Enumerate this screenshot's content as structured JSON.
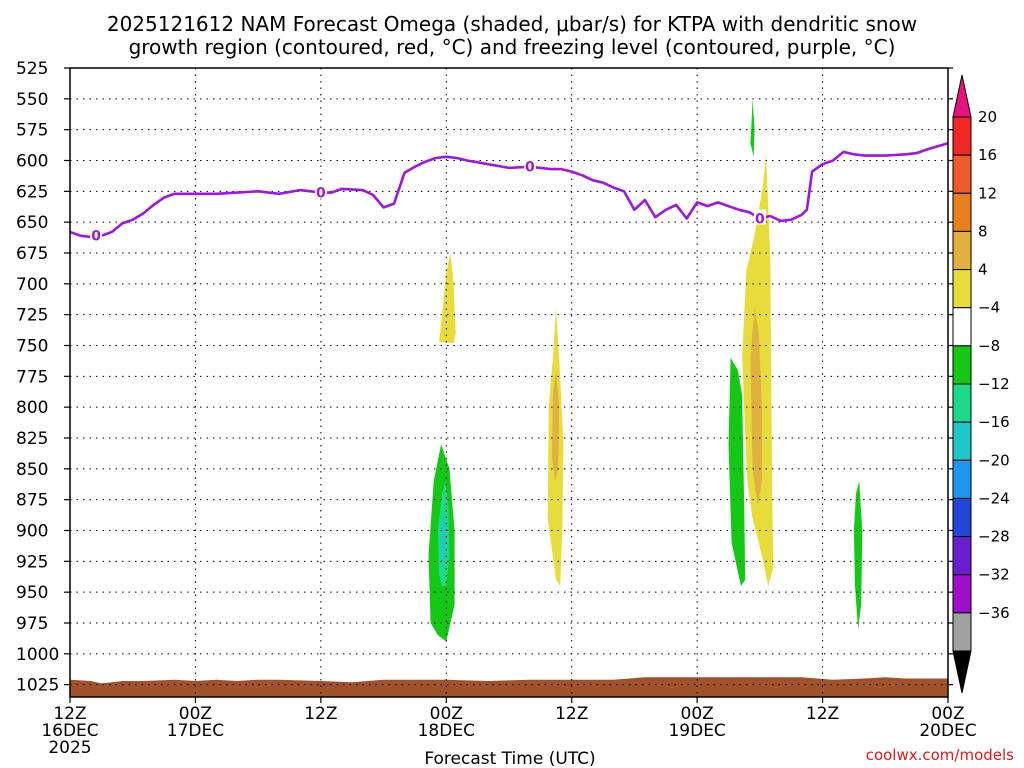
{
  "header": {
    "title_line1": "2025121612 NAM Forecast Omega (shaded, μbar/s) for KTPA with dendritic snow",
    "title_line2": "growth region (contoured, red, °C) and freezing level (contoured, purple, °C)"
  },
  "footer": {
    "xlabel": "Forecast Time (UTC)",
    "credit": "coolwx.com/models"
  },
  "colors": {
    "freezing_line": "#9b1bd4",
    "terrain": "#a0522d",
    "grid": "#000000"
  },
  "chart_data": {
    "type": "contour",
    "x_unit": "forecast hour from 2025-12-16 12Z",
    "xlim": [
      0,
      84
    ],
    "y_unit": "hPa",
    "ylim": [
      1035,
      525
    ],
    "y_ticks": [
      525,
      550,
      575,
      600,
      625,
      650,
      675,
      700,
      725,
      750,
      775,
      800,
      825,
      850,
      875,
      900,
      925,
      950,
      975,
      1000,
      1025
    ],
    "x_ticks": [
      {
        "hour": 0,
        "line1": "12Z",
        "line2": "16DEC",
        "line3": "2025"
      },
      {
        "hour": 12,
        "line1": "00Z",
        "line2": "17DEC",
        "line3": ""
      },
      {
        "hour": 24,
        "line1": "12Z",
        "line2": "",
        "line3": ""
      },
      {
        "hour": 36,
        "line1": "00Z",
        "line2": "18DEC",
        "line3": ""
      },
      {
        "hour": 48,
        "line1": "12Z",
        "line2": "",
        "line3": ""
      },
      {
        "hour": 60,
        "line1": "00Z",
        "line2": "19DEC",
        "line3": ""
      },
      {
        "hour": 72,
        "line1": "12Z",
        "line2": "",
        "line3": ""
      },
      {
        "hour": 84,
        "line1": "00Z",
        "line2": "20DEC",
        "line3": ""
      }
    ],
    "colorbar": {
      "labels": [
        "20",
        "16",
        "12",
        "8",
        "4",
        "−4",
        "−8",
        "−12",
        "−16",
        "−20",
        "−24",
        "−28",
        "−32",
        "−36"
      ],
      "top_arrow_color": "#e8127a",
      "bottom_arrow_color": "#000000",
      "bins": [
        {
          "color": "#f02828"
        },
        {
          "color": "#f05a28"
        },
        {
          "color": "#e8801e"
        },
        {
          "color": "#e0b040"
        },
        {
          "color": "#e8dc3c"
        },
        {
          "color": "#ffffff"
        },
        {
          "color": "#16c816"
        },
        {
          "color": "#1ed88c"
        },
        {
          "color": "#1ec8c8"
        },
        {
          "color": "#1e96ee"
        },
        {
          "color": "#2246d8"
        },
        {
          "color": "#6a1ed0"
        },
        {
          "color": "#9b10c8"
        },
        {
          "color": "#a0a0a0"
        }
      ]
    },
    "freezing_level": {
      "label": "0",
      "label_points": [
        [
          2.5,
          661
        ],
        [
          24,
          626
        ],
        [
          44,
          605
        ],
        [
          66,
          647
        ]
      ],
      "points": [
        [
          0,
          658
        ],
        [
          1,
          661
        ],
        [
          2,
          662
        ],
        [
          3,
          661
        ],
        [
          4,
          658
        ],
        [
          5,
          651
        ],
        [
          6,
          648
        ],
        [
          7,
          643
        ],
        [
          8,
          636
        ],
        [
          9,
          630
        ],
        [
          10,
          627
        ],
        [
          12,
          627
        ],
        [
          14,
          627
        ],
        [
          16,
          626
        ],
        [
          18,
          625
        ],
        [
          20,
          627
        ],
        [
          22,
          624
        ],
        [
          24,
          626
        ],
        [
          25,
          626
        ],
        [
          26,
          623
        ],
        [
          28,
          624
        ],
        [
          29,
          628
        ],
        [
          30,
          638
        ],
        [
          31,
          635
        ],
        [
          32,
          610
        ],
        [
          33,
          605
        ],
        [
          34,
          601
        ],
        [
          35,
          598
        ],
        [
          36,
          597
        ],
        [
          37,
          598
        ],
        [
          38,
          600
        ],
        [
          40,
          603
        ],
        [
          42,
          606
        ],
        [
          44,
          605
        ],
        [
          45,
          606
        ],
        [
          46,
          607
        ],
        [
          47,
          607
        ],
        [
          48,
          609
        ],
        [
          49,
          612
        ],
        [
          50,
          616
        ],
        [
          51,
          618
        ],
        [
          52,
          622
        ],
        [
          53,
          625
        ],
        [
          54,
          640
        ],
        [
          55,
          632
        ],
        [
          56,
          646
        ],
        [
          57,
          640
        ],
        [
          58,
          636
        ],
        [
          59,
          647
        ],
        [
          60,
          634
        ],
        [
          61,
          637
        ],
        [
          62,
          634
        ],
        [
          63,
          637
        ],
        [
          64,
          640
        ],
        [
          65,
          642
        ],
        [
          66,
          647
        ],
        [
          67,
          645
        ],
        [
          68,
          649
        ],
        [
          69,
          648
        ],
        [
          70,
          644
        ],
        [
          70.5,
          640
        ],
        [
          71,
          609
        ],
        [
          72,
          603
        ],
        [
          73,
          600
        ],
        [
          74,
          593
        ],
        [
          75,
          595
        ],
        [
          76,
          596
        ],
        [
          78,
          596
        ],
        [
          80,
          595
        ],
        [
          81,
          594
        ],
        [
          82,
          591
        ],
        [
          84,
          586
        ]
      ]
    },
    "omega_regions": [
      {
        "value": 8,
        "color": "#e8dc3c",
        "points": [
          [
            35.3,
            747
          ],
          [
            35.6,
            725
          ],
          [
            36,
            690
          ],
          [
            36.4,
            675
          ],
          [
            36.7,
            700
          ],
          [
            36.9,
            740
          ],
          [
            36.7,
            748
          ]
        ]
      },
      {
        "value": -4,
        "color": "#16c816",
        "points": [
          [
            34.5,
            975
          ],
          [
            34.3,
            920
          ],
          [
            34.8,
            860
          ],
          [
            35.5,
            830
          ],
          [
            36.3,
            850
          ],
          [
            36.8,
            900
          ],
          [
            36.8,
            960
          ],
          [
            36,
            990
          ],
          [
            35.2,
            985
          ]
        ]
      },
      {
        "value": -12,
        "color": "#1ed88c",
        "points": [
          [
            35.3,
            935
          ],
          [
            35.2,
            900
          ],
          [
            35.6,
            870
          ],
          [
            35.9,
            860
          ],
          [
            36.2,
            880
          ],
          [
            36.3,
            920
          ],
          [
            36,
            945
          ],
          [
            35.6,
            945
          ]
        ]
      },
      {
        "value": -16,
        "color": "#1ec8c8",
        "points": [
          [
            35.45,
            920
          ],
          [
            35.5,
            895
          ],
          [
            35.8,
            885
          ],
          [
            36,
            905
          ],
          [
            35.9,
            925
          ],
          [
            35.6,
            928
          ]
        ]
      },
      {
        "value": 8,
        "color": "#e8dc3c",
        "points": [
          [
            45.7,
            890
          ],
          [
            45.8,
            800
          ],
          [
            46.2,
            760
          ],
          [
            46.5,
            720
          ],
          [
            46.8,
            760
          ],
          [
            47.2,
            830
          ],
          [
            47.1,
            900
          ],
          [
            46.9,
            945
          ],
          [
            46.5,
            940
          ]
        ]
      },
      {
        "value": 12,
        "color": "#e0b040",
        "points": [
          [
            46.1,
            840
          ],
          [
            46.2,
            790
          ],
          [
            46.5,
            770
          ],
          [
            46.8,
            800
          ],
          [
            46.7,
            850
          ],
          [
            46.4,
            860
          ]
        ]
      },
      {
        "value": 8,
        "color": "#e8dc3c",
        "points": [
          [
            64.8,
            860
          ],
          [
            64.3,
            760
          ],
          [
            64.7,
            690
          ],
          [
            65.5,
            660
          ],
          [
            66.3,
            620
          ],
          [
            66.6,
            595
          ],
          [
            67,
            680
          ],
          [
            67.1,
            790
          ],
          [
            67.2,
            880
          ],
          [
            67.3,
            930
          ],
          [
            66.8,
            945
          ],
          [
            66.2,
            920
          ],
          [
            65.3,
            890
          ]
        ]
      },
      {
        "value": 12,
        "color": "#e0b040",
        "points": [
          [
            65.3,
            850
          ],
          [
            65.1,
            760
          ],
          [
            65.5,
            720
          ],
          [
            65.9,
            740
          ],
          [
            66.2,
            800
          ],
          [
            66.2,
            860
          ],
          [
            65.8,
            880
          ]
        ]
      },
      {
        "value": -4,
        "color": "#16c816",
        "points": [
          [
            63.3,
            910
          ],
          [
            63,
            830
          ],
          [
            63.2,
            760
          ],
          [
            63.9,
            770
          ],
          [
            64.3,
            790
          ],
          [
            64.5,
            880
          ],
          [
            64.6,
            940
          ],
          [
            64.2,
            945
          ],
          [
            63.8,
            930
          ]
        ]
      },
      {
        "value": -4,
        "color": "#16c816",
        "points": [
          [
            65.1,
            586
          ],
          [
            65.2,
            570
          ],
          [
            65.3,
            550
          ],
          [
            65.5,
            575
          ],
          [
            65.4,
            597
          ]
        ]
      },
      {
        "value": -4,
        "color": "#16c816",
        "points": [
          [
            75.1,
            945
          ],
          [
            75,
            900
          ],
          [
            75.2,
            870
          ],
          [
            75.5,
            860
          ],
          [
            75.8,
            900
          ],
          [
            75.7,
            960
          ],
          [
            75.4,
            980
          ]
        ]
      }
    ],
    "terrain": {
      "color": "#a0522d",
      "points": [
        [
          0,
          1021
        ],
        [
          2,
          1022
        ],
        [
          3,
          1024
        ],
        [
          4,
          1023
        ],
        [
          5,
          1022
        ],
        [
          7,
          1022
        ],
        [
          10,
          1021
        ],
        [
          12,
          1022
        ],
        [
          14,
          1021
        ],
        [
          16,
          1022
        ],
        [
          18,
          1021
        ],
        [
          20,
          1021
        ],
        [
          24,
          1022
        ],
        [
          27,
          1023
        ],
        [
          30,
          1021
        ],
        [
          32,
          1021
        ],
        [
          36,
          1021
        ],
        [
          40,
          1022
        ],
        [
          44,
          1021
        ],
        [
          48,
          1021
        ],
        [
          52,
          1021
        ],
        [
          55,
          1019
        ],
        [
          60,
          1019
        ],
        [
          66,
          1019
        ],
        [
          70,
          1019
        ],
        [
          73,
          1021
        ],
        [
          76,
          1020
        ],
        [
          78,
          1019
        ],
        [
          80,
          1020
        ],
        [
          84,
          1020
        ]
      ]
    }
  }
}
